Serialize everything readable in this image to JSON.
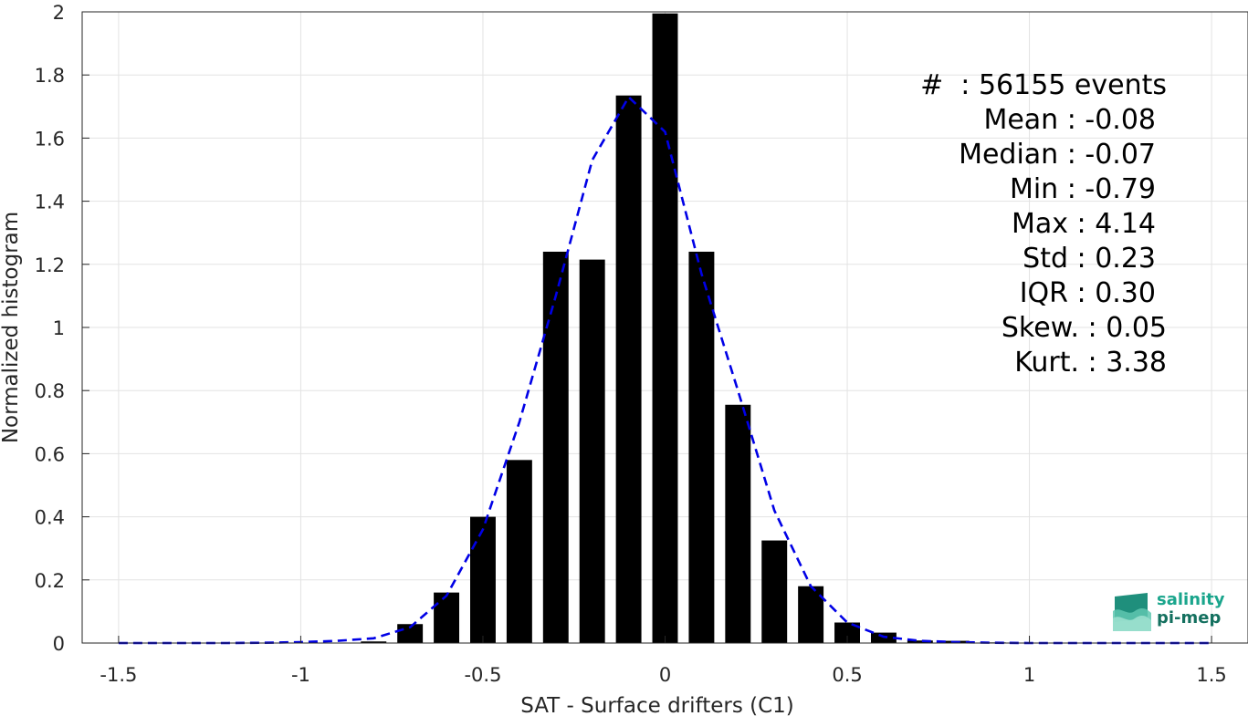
{
  "chart_data": {
    "type": "bar",
    "xlabel": "SAT - Surface drifters (C1)",
    "ylabel": "Normalized histogram",
    "xlim": [
      -1.6,
      1.6
    ],
    "ylim": [
      0,
      2
    ],
    "xticks": [
      -1.5,
      -1,
      -0.5,
      0,
      0.5,
      1,
      1.5
    ],
    "xtick_labels": [
      "-1.5",
      "-1",
      "-0.5",
      "0",
      "0.5",
      "1",
      "1.5"
    ],
    "yticks": [
      0,
      0.2,
      0.4,
      0.6,
      0.8,
      1,
      1.2,
      1.4,
      1.6,
      1.8,
      2
    ],
    "ytick_labels": [
      "0",
      "0.2",
      "0.4",
      "0.6",
      "0.8",
      "1",
      "1.2",
      "1.4",
      "1.6",
      "1.8",
      "2"
    ],
    "grid": true,
    "bar_width": 0.07,
    "bar_color": "#000000",
    "fit_color": "#0000e6",
    "bars": {
      "x": [
        -1.5,
        -1.4,
        -1.3,
        -1.2,
        -1.1,
        -1.0,
        -0.9,
        -0.8,
        -0.7,
        -0.6,
        -0.5,
        -0.4,
        -0.3,
        -0.2,
        -0.1,
        0.0,
        0.1,
        0.2,
        0.3,
        0.4,
        0.5,
        0.6,
        0.7,
        0.8,
        0.9,
        1.0,
        1.1,
        1.2,
        1.3,
        1.4,
        1.5
      ],
      "values": [
        0,
        0,
        0,
        0,
        0,
        0,
        0,
        0.005,
        0.06,
        0.16,
        0.4,
        0.58,
        1.24,
        1.215,
        1.735,
        1.995,
        1.24,
        0.755,
        0.325,
        0.18,
        0.065,
        0.033,
        0.008,
        0.007,
        0.002,
        0.001,
        0.001,
        0.001,
        0.001,
        0.001,
        0.001
      ]
    },
    "fit_curve": {
      "name": "gaussian fit",
      "x": [
        -1.5,
        -1.4,
        -1.3,
        -1.2,
        -1.1,
        -1.0,
        -0.9,
        -0.8,
        -0.7,
        -0.6,
        -0.5,
        -0.4,
        -0.3,
        -0.2,
        -0.1,
        0.0,
        0.1,
        0.2,
        0.3,
        0.4,
        0.5,
        0.6,
        0.7,
        0.8,
        0.9,
        1.0,
        1.1,
        1.2,
        1.3,
        1.4,
        1.5
      ],
      "y": [
        0,
        0,
        0,
        0,
        0.001,
        0.003,
        0.007,
        0.015,
        0.05,
        0.15,
        0.36,
        0.7,
        1.1,
        1.53,
        1.73,
        1.62,
        1.17,
        0.8,
        0.42,
        0.18,
        0.065,
        0.02,
        0.007,
        0.003,
        0.001,
        0,
        0,
        0,
        0,
        0,
        0
      ]
    }
  },
  "stats": [
    "#  : 56155 events",
    "Mean : -0.08",
    "Median : -0.07",
    "Min : -0.79",
    "Max : 4.14",
    "Std : 0.23",
    "IQR : 0.30",
    "Skew. : 0.05",
    "Kurt. : 3.38"
  ],
  "logo": {
    "line1": "salinity",
    "line2": "pi-mep",
    "color": "#1aa58c"
  }
}
